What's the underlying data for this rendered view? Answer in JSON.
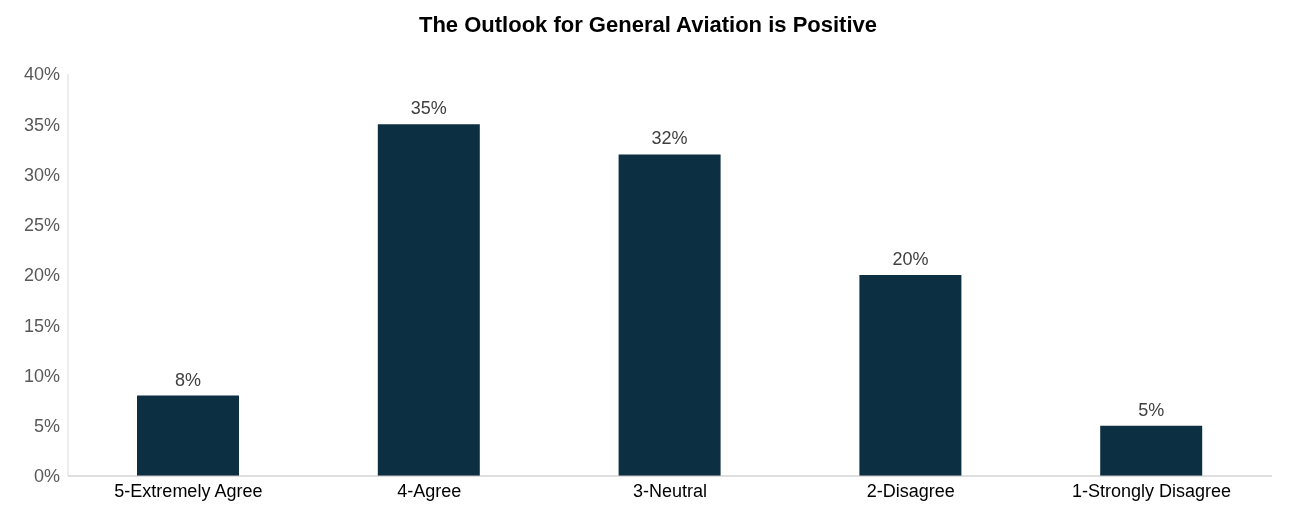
{
  "chart_data": {
    "type": "bar",
    "title": "The Outlook for General Aviation is Positive",
    "categories": [
      "5-Extremely Agree",
      "4-Agree",
      "3-Neutral",
      "2-Disagree",
      "1-Strongly Disagree"
    ],
    "values": [
      8,
      35,
      32,
      20,
      5
    ],
    "value_labels": [
      "8%",
      "35%",
      "32%",
      "20%",
      "5%"
    ],
    "color": "#0d2f42",
    "ylim": [
      0,
      40
    ],
    "yticks": [
      {
        "value": 0,
        "label": "0%"
      },
      {
        "value": 5,
        "label": "5%"
      },
      {
        "value": 10,
        "label": "10%"
      },
      {
        "value": 15,
        "label": "15%"
      },
      {
        "value": 20,
        "label": "20%"
      },
      {
        "value": 25,
        "label": "25%"
      },
      {
        "value": 30,
        "label": "30%"
      },
      {
        "value": 35,
        "label": "35%"
      },
      {
        "value": 40,
        "label": "40%"
      }
    ],
    "grid": false,
    "legend": false
  }
}
